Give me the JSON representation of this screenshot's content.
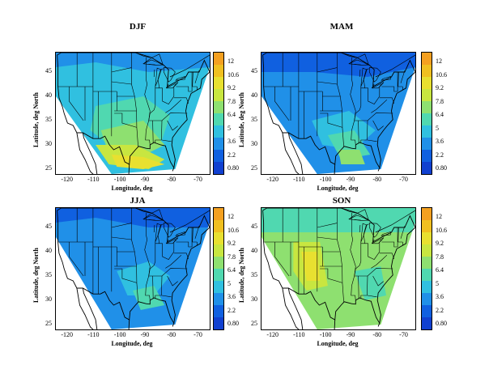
{
  "panels": [
    {
      "title": "DJF"
    },
    {
      "title": "MAM"
    },
    {
      "title": "JJA"
    },
    {
      "title": "SON"
    }
  ],
  "axes": {
    "xlabel": "Longitude,  deg",
    "ylabel": "Latitude,  deg North",
    "xticks": [
      "-120",
      "-110",
      "-100",
      "-90",
      "-80",
      "-70"
    ],
    "yticks": [
      "45",
      "40",
      "35",
      "30",
      "25"
    ]
  },
  "colorbar": {
    "labels": [
      "12",
      "10.6",
      "9.2",
      "7.8",
      "6.4",
      "5",
      "3.6",
      "2.2",
      "0.80"
    ],
    "colors": [
      "#f4a020",
      "#f0c020",
      "#e8e030",
      "#c8e640",
      "#8ee070",
      "#50d8b0",
      "#30c0e0",
      "#2090e8",
      "#1060e0",
      "#1040d0"
    ]
  }
}
